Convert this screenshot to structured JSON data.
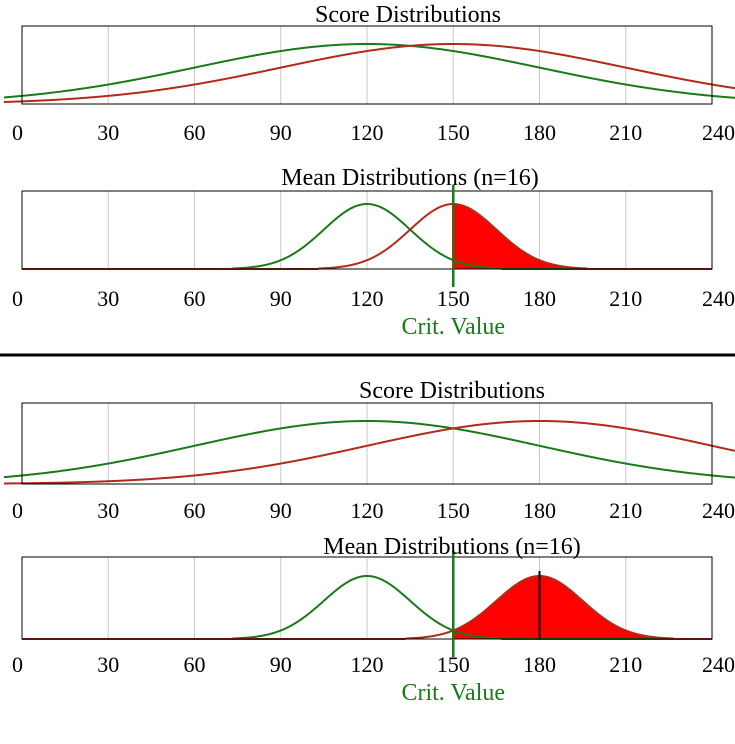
{
  "colors": {
    "null_curve": "#1a7a1a",
    "alt_curve": "#b22a1a",
    "power_fill": "#ff0000",
    "crit_line": "#1a7a1a",
    "grid": "#c8c8c8",
    "frame": "#000000"
  },
  "crit_label": "Crit. Value",
  "chart_data": [
    {
      "id": "top-score",
      "type": "line",
      "title": "Score Distributions",
      "xlim": [
        0,
        240
      ],
      "xticks": [
        "0",
        "30",
        "60",
        "90",
        "120",
        "150",
        "180",
        "210",
        "240"
      ],
      "grid": true,
      "series": [
        {
          "role": "null",
          "mean": 120,
          "sd": 60
        },
        {
          "role": "alt",
          "mean": 150,
          "sd": 60
        }
      ]
    },
    {
      "id": "top-mean",
      "type": "area",
      "title": "Mean Distributions (n=16)",
      "xlim": [
        0,
        240
      ],
      "xticks": [
        "0",
        "30",
        "60",
        "90",
        "120",
        "150",
        "180",
        "210",
        "240"
      ],
      "grid": true,
      "series": [
        {
          "role": "null",
          "mean": 120,
          "sd": 15
        },
        {
          "role": "alt",
          "mean": 150,
          "sd": 15
        }
      ],
      "critical_value": 150,
      "shaded_above_critical": true,
      "alt_mean_marker": 150
    },
    {
      "id": "bottom-score",
      "type": "line",
      "title": "Score Distributions",
      "xlim": [
        0,
        240
      ],
      "xticks": [
        "0",
        "30",
        "60",
        "90",
        "120",
        "150",
        "180",
        "210",
        "240"
      ],
      "grid": true,
      "series": [
        {
          "role": "null",
          "mean": 120,
          "sd": 60
        },
        {
          "role": "alt",
          "mean": 180,
          "sd": 60
        }
      ]
    },
    {
      "id": "bottom-mean",
      "type": "area",
      "title": "Mean Distributions (n=16)",
      "xlim": [
        0,
        240
      ],
      "xticks": [
        "0",
        "30",
        "60",
        "90",
        "120",
        "150",
        "180",
        "210",
        "240"
      ],
      "grid": true,
      "series": [
        {
          "role": "null",
          "mean": 120,
          "sd": 15
        },
        {
          "role": "alt",
          "mean": 180,
          "sd": 15
        }
      ],
      "critical_value": 150,
      "shaded_above_critical": true,
      "alt_mean_marker": 180
    }
  ]
}
